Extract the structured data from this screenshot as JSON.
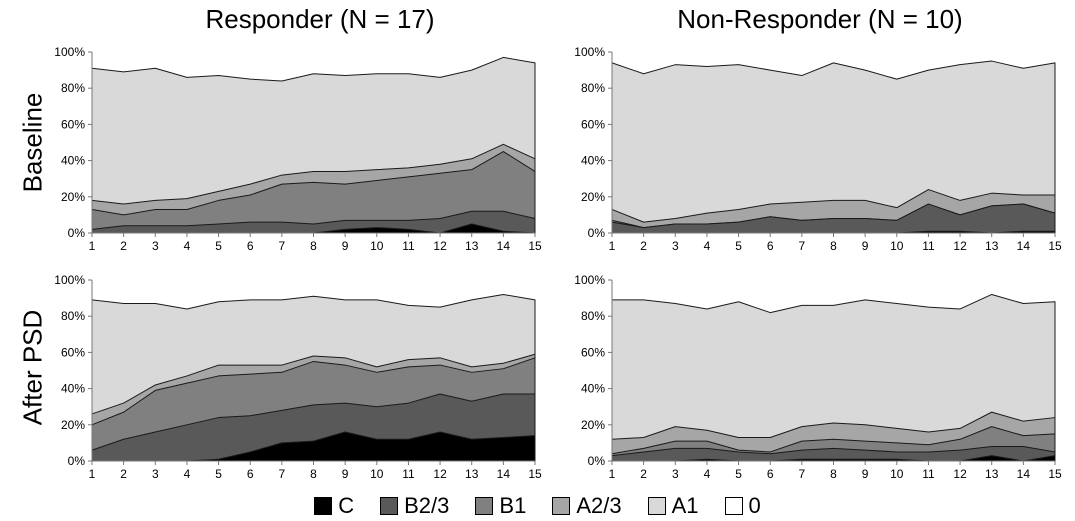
{
  "chart_data": {
    "type": "area",
    "stacked": true,
    "x": [
      1,
      2,
      3,
      4,
      5,
      6,
      7,
      8,
      9,
      10,
      11,
      12,
      13,
      14,
      15
    ],
    "ylim": [
      0,
      100
    ],
    "y_ticks": [
      "0%",
      "20%",
      "40%",
      "60%",
      "80%",
      "100%"
    ],
    "columns": [
      "Responder (N = 17)",
      "Non-Responder (N = 10)"
    ],
    "rows": [
      "Baseline",
      "After PSD"
    ],
    "legend": [
      {
        "name": "C",
        "color": "#000000"
      },
      {
        "name": "B2/3",
        "color": "#595959"
      },
      {
        "name": "B1",
        "color": "#808080"
      },
      {
        "name": "A2/3",
        "color": "#a6a6a6"
      },
      {
        "name": "A1",
        "color": "#d9d9d9"
      },
      {
        "name": "0",
        "color": "#ffffff"
      }
    ],
    "panels": [
      {
        "row": "Baseline",
        "column": "Responder (N = 17)",
        "cumulative": {
          "C": [
            0,
            0,
            0,
            0,
            0,
            0,
            0,
            0,
            2,
            3,
            2,
            0,
            5,
            1,
            0
          ],
          "B2/3": [
            2,
            4,
            4,
            4,
            5,
            6,
            6,
            5,
            7,
            7,
            7,
            8,
            12,
            12,
            8
          ],
          "B1": [
            13,
            10,
            13,
            13,
            18,
            21,
            27,
            28,
            27,
            29,
            31,
            33,
            35,
            45,
            34
          ],
          "A2/3": [
            18,
            16,
            18,
            19,
            23,
            27,
            32,
            34,
            34,
            35,
            36,
            38,
            41,
            49,
            41
          ],
          "A1": [
            91,
            89,
            91,
            86,
            87,
            85,
            84,
            88,
            87,
            88,
            88,
            86,
            90,
            97,
            94
          ]
        }
      },
      {
        "row": "Baseline",
        "column": "Non-Responder (N = 10)",
        "cumulative": {
          "C": [
            0,
            0,
            0,
            0,
            0,
            0,
            0,
            0,
            0,
            0,
            1,
            1,
            0,
            1,
            1
          ],
          "B2/3": [
            6,
            3,
            5,
            5,
            6,
            9,
            7,
            8,
            8,
            7,
            16,
            10,
            15,
            16,
            11
          ],
          "B1": [
            7,
            3,
            5,
            5,
            6,
            9,
            7,
            8,
            8,
            7,
            16,
            10,
            15,
            16,
            11
          ],
          "A2/3": [
            13,
            6,
            8,
            11,
            13,
            16,
            17,
            18,
            18,
            14,
            24,
            18,
            22,
            21,
            21
          ],
          "A1": [
            94,
            88,
            93,
            92,
            93,
            90,
            87,
            94,
            90,
            85,
            90,
            93,
            95,
            91,
            94
          ]
        }
      },
      {
        "row": "After PSD",
        "column": "Responder (N = 17)",
        "cumulative": {
          "C": [
            0,
            0,
            0,
            0,
            1,
            5,
            10,
            11,
            16,
            12,
            12,
            16,
            12,
            13,
            14
          ],
          "B2/3": [
            6,
            12,
            16,
            20,
            24,
            25,
            28,
            31,
            32,
            30,
            32,
            37,
            33,
            37,
            37
          ],
          "B1": [
            20,
            27,
            39,
            43,
            47,
            48,
            49,
            55,
            53,
            49,
            52,
            53,
            49,
            51,
            57
          ],
          "A2/3": [
            26,
            32,
            42,
            47,
            53,
            53,
            53,
            58,
            57,
            52,
            56,
            57,
            52,
            54,
            59
          ],
          "A1": [
            89,
            87,
            87,
            84,
            88,
            89,
            89,
            91,
            89,
            89,
            86,
            85,
            89,
            92,
            89
          ]
        }
      },
      {
        "row": "After PSD",
        "column": "Non-Responder (N = 10)",
        "cumulative": {
          "C": [
            0,
            0,
            0,
            1,
            0,
            0,
            1,
            1,
            1,
            1,
            0,
            0,
            3,
            0,
            3
          ],
          "B2/3": [
            3,
            5,
            7,
            7,
            5,
            4,
            6,
            7,
            6,
            5,
            5,
            6,
            8,
            8,
            5
          ],
          "B1": [
            4,
            7,
            11,
            11,
            6,
            5,
            11,
            12,
            11,
            10,
            9,
            12,
            19,
            14,
            15
          ],
          "A2/3": [
            12,
            13,
            19,
            17,
            13,
            13,
            19,
            21,
            20,
            18,
            16,
            18,
            27,
            22,
            24
          ],
          "A1": [
            89,
            89,
            87,
            84,
            88,
            82,
            86,
            86,
            89,
            87,
            85,
            84,
            92,
            87,
            88
          ]
        }
      }
    ]
  }
}
